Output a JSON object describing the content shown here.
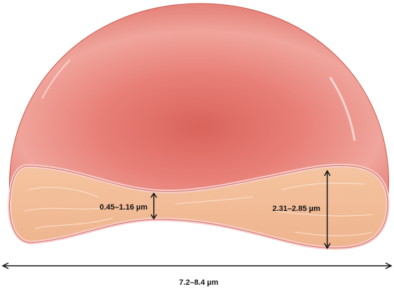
{
  "labels": {
    "thin_thickness": "0.45–1.16 µm",
    "thick_thickness": "2.31–2.85 µm",
    "diameter": "7.2–8.4 µm"
  }
}
